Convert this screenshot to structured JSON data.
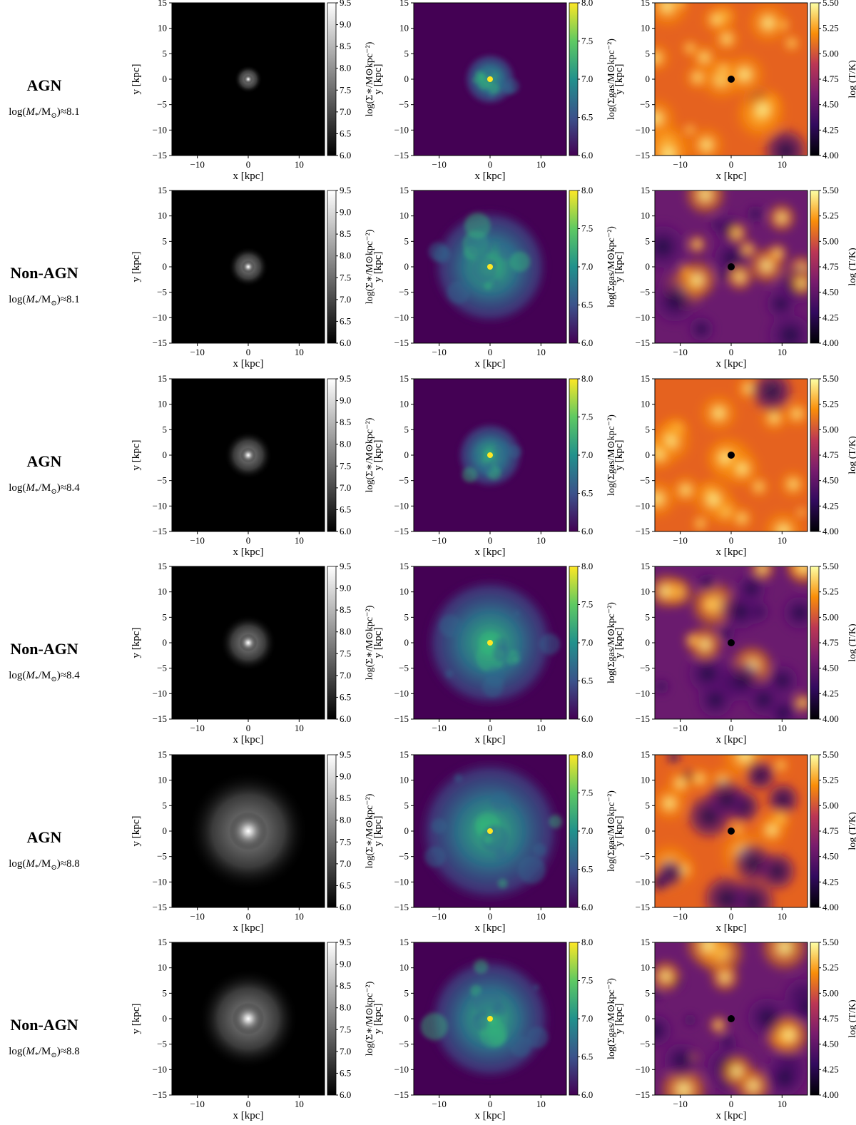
{
  "figure": {
    "rows": [
      {
        "label": "AGN",
        "mass_prefix": "log(",
        "mass_var": "M",
        "mass_sub": "*",
        "mass_div": "/M",
        "mass_sun": "⊙",
        "mass_suffix": ")≈",
        "mass_value": "8.1"
      },
      {
        "label": "Non-AGN",
        "mass_prefix": "log(",
        "mass_var": "M",
        "mass_sub": "*",
        "mass_div": "/M",
        "mass_sun": "⊙",
        "mass_suffix": ")≈",
        "mass_value": "8.1"
      },
      {
        "label": "AGN",
        "mass_prefix": "log(",
        "mass_var": "M",
        "mass_sub": "*",
        "mass_div": "/M",
        "mass_sun": "⊙",
        "mass_suffix": ")≈",
        "mass_value": "8.4"
      },
      {
        "label": "Non-AGN",
        "mass_prefix": "log(",
        "mass_var": "M",
        "mass_sub": "*",
        "mass_div": "/M",
        "mass_sun": "⊙",
        "mass_suffix": ")≈",
        "mass_value": "8.4"
      },
      {
        "label": "AGN",
        "mass_prefix": "log(",
        "mass_var": "M",
        "mass_sub": "*",
        "mass_div": "/M",
        "mass_sun": "⊙",
        "mass_suffix": ")≈",
        "mass_value": "8.8"
      },
      {
        "label": "Non-AGN",
        "mass_prefix": "log(",
        "mass_var": "M",
        "mass_sub": "*",
        "mass_div": "/M",
        "mass_sun": "⊙",
        "mass_suffix": ")≈",
        "mass_value": "8.8"
      }
    ],
    "columns": [
      {
        "key": "stars",
        "colormap": "greys",
        "colorbar_label": "log(Σ∗/M⊙kpc⁻²)",
        "cbar_ticks": [
          "6.0",
          "6.5",
          "7.0",
          "7.5",
          "8.0",
          "8.5",
          "9.0",
          "9.5"
        ],
        "range": [
          6.0,
          9.5
        ]
      },
      {
        "key": "gas",
        "colormap": "viridis",
        "colorbar_label": "log(Σgas/M⊙kpc⁻²)",
        "cbar_ticks": [
          "6.0",
          "6.5",
          "7.0",
          "7.5",
          "8.0"
        ],
        "range": [
          6.0,
          8.0
        ]
      },
      {
        "key": "temperature",
        "colormap": "inferno",
        "colorbar_label": "log (T/K)",
        "cbar_ticks": [
          "4.00",
          "4.25",
          "4.50",
          "4.75",
          "5.00",
          "5.25",
          "5.50"
        ],
        "range": [
          4.0,
          5.5
        ]
      }
    ],
    "axes": {
      "xlabel": "x [kpc]",
      "ylabel": "y [kpc]",
      "xticks": [
        "−10",
        "0",
        "10"
      ],
      "yticks": [
        "15",
        "10",
        "5",
        "0",
        "−5",
        "−10",
        "−15"
      ],
      "xlim": [
        -15,
        15
      ],
      "ylim": [
        -15,
        15
      ]
    },
    "colors": {
      "viridis_bg": "#440154",
      "viridis_mid": "#31688e",
      "viridis_green": "#35b779",
      "viridis_top": "#fde725",
      "inferno_dark": "#000004",
      "inferno_purple": "#57106e",
      "inferno_orange": "#f98e09",
      "inferno_top": "#fcffa4"
    }
  }
}
